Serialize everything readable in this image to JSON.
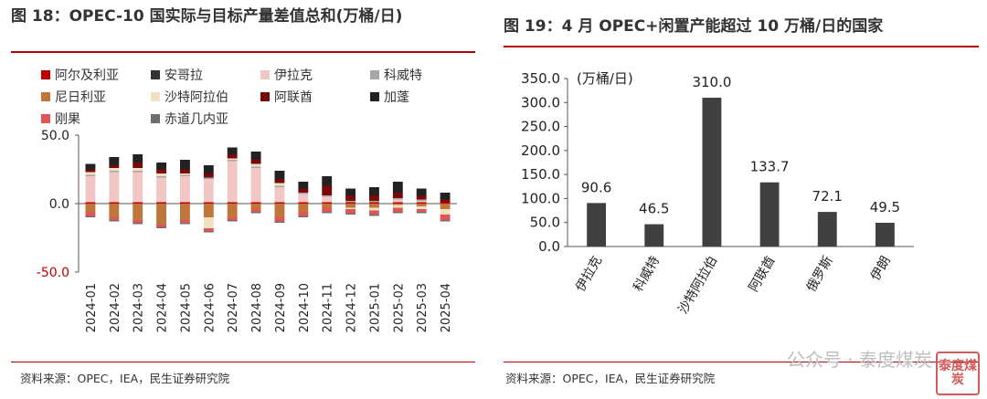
{
  "charts": {
    "left": {
      "title": "图 18：OPEC-10 国实际与目标产量差值总和(万桶/日)",
      "source": "资料来源：OPEC，IEA，民生证券研究院"
    },
    "right": {
      "title": "图 19：4 月 OPEC+闲置产能超过 10 万桶/日的国家",
      "source": "资料来源：OPEC，IEA，民生证券研究院"
    }
  },
  "watermark": {
    "text": "公众号 · 泰度煤炭",
    "stamp": "泰度煤炭"
  },
  "chart_data": [
    {
      "type": "bar",
      "stacked": true,
      "title": "图 18：OPEC-10 国实际与目标产量差值总和(万桶/日)",
      "categories": [
        "2024-01",
        "2024-02",
        "2024-03",
        "2024-04",
        "2024-05",
        "2024-06",
        "2024-07",
        "2024-08",
        "2024-09",
        "2024-10",
        "2024-11",
        "2024-12",
        "2025-01",
        "2025-02",
        "2025-03",
        "2025-04"
      ],
      "ylim": [
        -50,
        50
      ],
      "yticks": [
        "-50.0",
        "0.0",
        "50.0"
      ],
      "tick_color_negative": "#c00000",
      "series": [
        {
          "name": "阿尔及利亚",
          "color": "#c00000",
          "values": [
            1,
            1,
            1,
            1,
            1,
            1,
            1,
            1,
            1,
            1,
            1,
            1,
            1,
            1,
            1,
            1
          ]
        },
        {
          "name": "安哥拉",
          "color": "#333333",
          "values": [
            0,
            0,
            0,
            0,
            0,
            0,
            0,
            0,
            0,
            0,
            0,
            0,
            0,
            0,
            0,
            0
          ]
        },
        {
          "name": "伊拉克",
          "color": "#f3c6c6",
          "values": [
            19,
            22,
            22,
            18,
            19,
            17,
            30,
            25,
            11,
            6,
            4,
            0,
            0,
            2,
            1,
            0
          ]
        },
        {
          "name": "科威特",
          "color": "#a6a6a6",
          "values": [
            1,
            1,
            1,
            1,
            1,
            1,
            1,
            1,
            1,
            1,
            1,
            1,
            1,
            1,
            1,
            0
          ]
        },
        {
          "name": "尼日利亚",
          "color": "#c0753a",
          "values": [
            -6,
            -10,
            -12,
            -15,
            -12,
            -10,
            -10,
            -4,
            -10,
            -6,
            -3,
            -3,
            -3,
            -1,
            -2,
            -4
          ]
        },
        {
          "name": "沙特阿拉伯",
          "color": "#f2e0c2",
          "values": [
            2,
            2,
            2,
            2,
            1,
            -8,
            1,
            2,
            2,
            0,
            0,
            -1,
            -2,
            -2,
            -2,
            -4
          ]
        },
        {
          "name": "阿联酋",
          "color": "#7a0a0a",
          "values": [
            2,
            2,
            4,
            3,
            3,
            3,
            3,
            3,
            3,
            3,
            7,
            4,
            4,
            4,
            3,
            2
          ]
        },
        {
          "name": "加蓬",
          "color": "#222222",
          "values": [
            4,
            6,
            6,
            5,
            7,
            6,
            5,
            6,
            6,
            5,
            7,
            5,
            6,
            8,
            5,
            5
          ]
        },
        {
          "name": "刚果",
          "color": "#e05555",
          "values": [
            -3,
            -2,
            -2,
            -2,
            -2,
            -2,
            -2,
            -2,
            -3,
            -3,
            -3,
            -3,
            -3,
            -3,
            -2,
            -4
          ]
        },
        {
          "name": "赤道几内亚",
          "color": "#6e6e6e",
          "values": [
            -1,
            -1,
            -1,
            -1,
            -1,
            -1,
            -1,
            -1,
            -1,
            -1,
            -1,
            -1,
            -1,
            -1,
            -1,
            -1
          ]
        }
      ]
    },
    {
      "type": "bar",
      "title": "图 19：4 月 OPEC+闲置产能超过 10 万桶/日的国家",
      "unit_label": "(万桶/日)",
      "categories": [
        "伊拉克",
        "科威特",
        "沙特阿拉伯",
        "阿联酋",
        "俄罗斯",
        "伊朗"
      ],
      "values": [
        90.6,
        46.5,
        310.0,
        133.7,
        72.1,
        49.5
      ],
      "value_labels": [
        "90.6",
        "46.5",
        "310.0",
        "133.7",
        "72.1",
        "49.5"
      ],
      "ylim": [
        0,
        350
      ],
      "yticks": [
        "0.0",
        "50.0",
        "100.0",
        "150.0",
        "200.0",
        "250.0",
        "300.0",
        "350.0"
      ],
      "bar_color": "#404040"
    }
  ]
}
